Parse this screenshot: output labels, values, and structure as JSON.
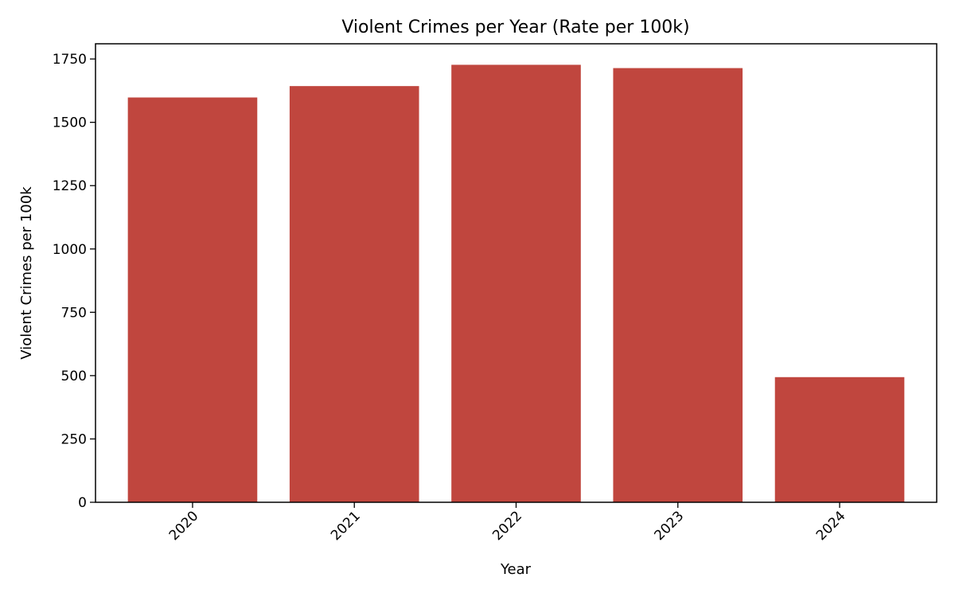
{
  "chart_data": {
    "type": "bar",
    "title": "Violent Crimes per Year (Rate per 100k)",
    "xlabel": "Year",
    "ylabel": "Violent Crimes per 100k",
    "categories": [
      "2020",
      "2021",
      "2022",
      "2023",
      "2024"
    ],
    "values": [
      1598,
      1643,
      1727,
      1714,
      494
    ],
    "ylim": [
      0,
      1810
    ],
    "yticks": [
      0,
      250,
      500,
      750,
      1000,
      1250,
      1500,
      1750
    ],
    "bar_color": "#c0463e",
    "grid": false,
    "legend": "none"
  }
}
